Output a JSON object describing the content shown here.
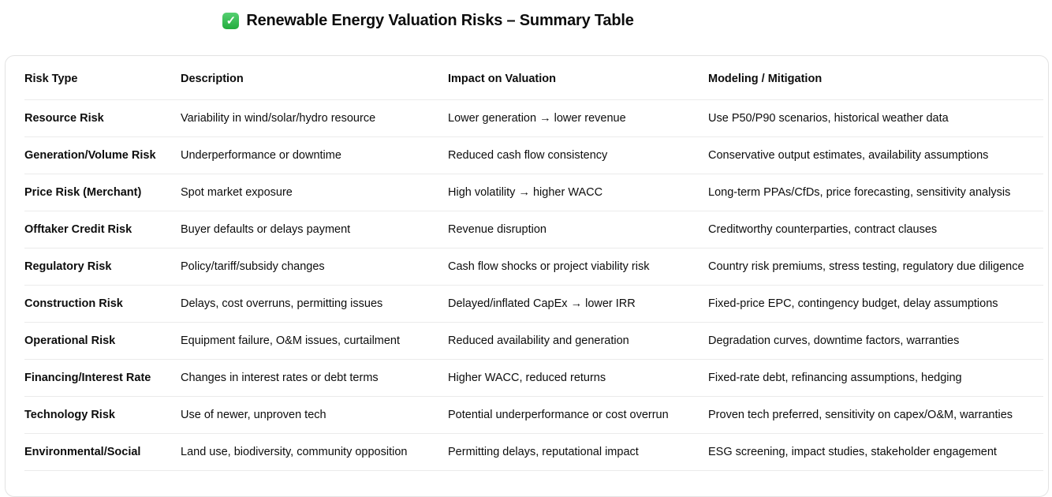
{
  "title": {
    "icon": "check-mark",
    "icon_glyph": "✓",
    "icon_color": "#2bb347",
    "text": "Renewable Energy Valuation Risks – Summary Table"
  },
  "table": {
    "columns": [
      "Risk Type",
      "Description",
      "Impact on Valuation",
      "Modeling / Mitigation"
    ],
    "rows": [
      [
        "Resource Risk",
        "Variability in wind/solar/hydro resource",
        "Lower generation → lower revenue",
        "Use P50/P90 scenarios, historical weather data"
      ],
      [
        "Generation/Volume Risk",
        "Underperformance or downtime",
        "Reduced cash flow consistency",
        "Conservative output estimates, availability assumptions"
      ],
      [
        "Price Risk (Merchant)",
        "Spot market exposure",
        "High volatility → higher WACC",
        "Long-term PPAs/CfDs, price forecasting, sensitivity analysis"
      ],
      [
        "Offtaker Credit Risk",
        "Buyer defaults or delays payment",
        "Revenue disruption",
        "Creditworthy counterparties, contract clauses"
      ],
      [
        "Regulatory Risk",
        "Policy/tariff/subsidy changes",
        "Cash flow shocks or project viability risk",
        "Country risk premiums, stress testing, regulatory due diligence"
      ],
      [
        "Construction Risk",
        "Delays, cost overruns, permitting issues",
        "Delayed/inflated CapEx → lower IRR",
        "Fixed-price EPC, contingency budget, delay assumptions"
      ],
      [
        "Operational Risk",
        "Equipment failure, O&M issues, curtailment",
        "Reduced availability and generation",
        "Degradation curves, downtime factors, warranties"
      ],
      [
        "Financing/Interest Rate",
        "Changes in interest rates or debt terms",
        "Higher WACC, reduced returns",
        "Fixed-rate debt, refinancing assumptions, hedging"
      ],
      [
        "Technology Risk",
        "Use of newer, unproven tech",
        "Potential underperformance or cost overrun",
        "Proven tech preferred, sensitivity on capex/O&M, warranties"
      ],
      [
        "Environmental/Social",
        "Land use, biodiversity, community opposition",
        "Permitting delays, reputational impact",
        "ESG screening, impact studies, stakeholder engagement"
      ]
    ]
  },
  "colors": {
    "text": "#0d0d0d",
    "divider": "#ebebeb",
    "card_border": "#e3e3e3",
    "background": "#ffffff",
    "check_green": "#2bb347"
  }
}
